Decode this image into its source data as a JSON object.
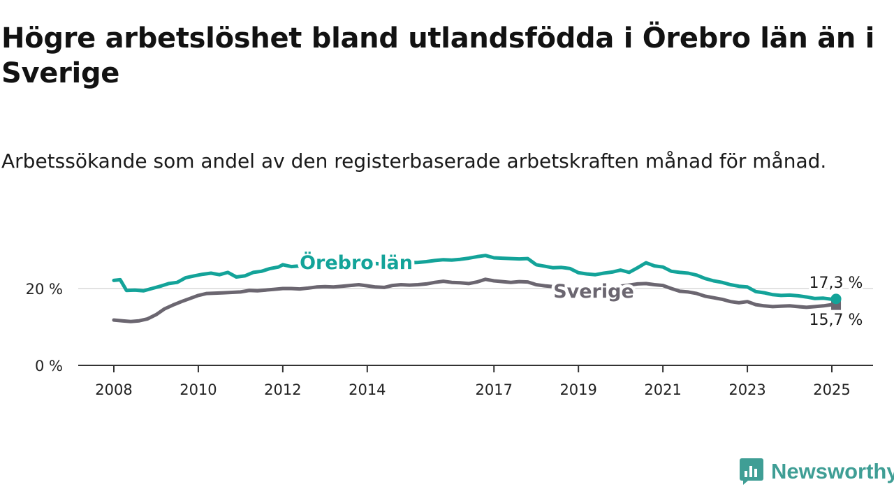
{
  "header": {
    "title": "Högre arbetslöshet bland utlandsfödda i Örebro län än i Sverige",
    "subtitle": "Arbetssökande som andel av den registerbaserade arbetskraften månad för månad."
  },
  "brand": {
    "name": "Newsworthy",
    "icon": "newsworthy-logo-icon",
    "color": "#3f9e95"
  },
  "chart_data": {
    "type": "line",
    "title": "Högre arbetslöshet bland utlandsfödda i Örebro län än i Sverige",
    "subtitle": "Arbetssökande som andel av den registerbaserade arbetskraften månad för månad.",
    "xlabel": "",
    "ylabel": "",
    "xlim": [
      2008.0,
      2025.9
    ],
    "ylim": [
      0,
      30
    ],
    "yticks": [
      0,
      20
    ],
    "ytick_labels": [
      "0 %",
      "20 %"
    ],
    "xticks": [
      2008,
      2010,
      2012,
      2014,
      2017,
      2019,
      2021,
      2023,
      2025
    ],
    "xtick_labels": [
      "2008",
      "2010",
      "2012",
      "2014",
      "2017",
      "2019",
      "2021",
      "2023",
      "2025"
    ],
    "grid": "horizontal",
    "series": [
      {
        "name": "Örebro län",
        "color": "#13a399",
        "end_label": "17,3 %",
        "points": [
          [
            2008.0,
            22.1
          ],
          [
            2008.15,
            22.3
          ],
          [
            2008.3,
            19.5
          ],
          [
            2008.5,
            19.6
          ],
          [
            2008.7,
            19.4
          ],
          [
            2008.9,
            20.0
          ],
          [
            2009.1,
            20.6
          ],
          [
            2009.3,
            21.3
          ],
          [
            2009.5,
            21.6
          ],
          [
            2009.7,
            22.8
          ],
          [
            2009.9,
            23.3
          ],
          [
            2010.1,
            23.7
          ],
          [
            2010.3,
            24.0
          ],
          [
            2010.5,
            23.6
          ],
          [
            2010.7,
            24.2
          ],
          [
            2010.9,
            23.0
          ],
          [
            2011.1,
            23.3
          ],
          [
            2011.3,
            24.2
          ],
          [
            2011.5,
            24.5
          ],
          [
            2011.7,
            25.2
          ],
          [
            2011.9,
            25.6
          ],
          [
            2012.0,
            26.2
          ],
          [
            2012.2,
            25.7
          ],
          [
            2012.4,
            25.9
          ],
          [
            2012.6,
            26.1
          ],
          [
            2012.8,
            26.0
          ],
          [
            2013.0,
            26.2
          ],
          [
            2013.2,
            26.0
          ],
          [
            2013.4,
            26.3
          ],
          [
            2013.6,
            26.1
          ],
          [
            2013.8,
            26.4
          ],
          [
            2014.0,
            26.2
          ],
          [
            2014.2,
            26.5
          ],
          [
            2014.4,
            26.3
          ],
          [
            2014.6,
            26.6
          ],
          [
            2014.8,
            26.5
          ],
          [
            2015.0,
            26.7
          ],
          [
            2015.2,
            26.8
          ],
          [
            2015.4,
            27.0
          ],
          [
            2015.6,
            27.3
          ],
          [
            2015.8,
            27.5
          ],
          [
            2016.0,
            27.4
          ],
          [
            2016.2,
            27.6
          ],
          [
            2016.4,
            27.9
          ],
          [
            2016.6,
            28.3
          ],
          [
            2016.8,
            28.6
          ],
          [
            2017.0,
            28.0
          ],
          [
            2017.2,
            27.9
          ],
          [
            2017.4,
            27.8
          ],
          [
            2017.6,
            27.7
          ],
          [
            2017.8,
            27.8
          ],
          [
            2018.0,
            26.2
          ],
          [
            2018.2,
            25.8
          ],
          [
            2018.4,
            25.4
          ],
          [
            2018.6,
            25.5
          ],
          [
            2018.8,
            25.2
          ],
          [
            2019.0,
            24.1
          ],
          [
            2019.2,
            23.8
          ],
          [
            2019.4,
            23.6
          ],
          [
            2019.6,
            24.0
          ],
          [
            2019.8,
            24.3
          ],
          [
            2020.0,
            24.8
          ],
          [
            2020.2,
            24.2
          ],
          [
            2020.4,
            25.4
          ],
          [
            2020.6,
            26.7
          ],
          [
            2020.8,
            25.9
          ],
          [
            2021.0,
            25.6
          ],
          [
            2021.2,
            24.5
          ],
          [
            2021.4,
            24.2
          ],
          [
            2021.6,
            24.0
          ],
          [
            2021.8,
            23.5
          ],
          [
            2022.0,
            22.6
          ],
          [
            2022.2,
            22.0
          ],
          [
            2022.4,
            21.6
          ],
          [
            2022.6,
            21.0
          ],
          [
            2022.8,
            20.6
          ],
          [
            2023.0,
            20.4
          ],
          [
            2023.2,
            19.2
          ],
          [
            2023.4,
            18.9
          ],
          [
            2023.6,
            18.4
          ],
          [
            2023.8,
            18.2
          ],
          [
            2024.0,
            18.3
          ],
          [
            2024.2,
            18.1
          ],
          [
            2024.4,
            17.8
          ],
          [
            2024.6,
            17.4
          ],
          [
            2024.8,
            17.5
          ],
          [
            2025.0,
            17.2
          ],
          [
            2025.1,
            17.3
          ]
        ]
      },
      {
        "name": "Sverige",
        "color": "#6b6670",
        "end_label": "15,7 %",
        "points": [
          [
            2008.0,
            11.8
          ],
          [
            2008.2,
            11.6
          ],
          [
            2008.4,
            11.4
          ],
          [
            2008.6,
            11.6
          ],
          [
            2008.8,
            12.1
          ],
          [
            2009.0,
            13.2
          ],
          [
            2009.2,
            14.7
          ],
          [
            2009.4,
            15.7
          ],
          [
            2009.6,
            16.6
          ],
          [
            2009.8,
            17.4
          ],
          [
            2010.0,
            18.2
          ],
          [
            2010.2,
            18.7
          ],
          [
            2010.4,
            18.8
          ],
          [
            2010.6,
            18.9
          ],
          [
            2010.8,
            19.0
          ],
          [
            2011.0,
            19.1
          ],
          [
            2011.2,
            19.5
          ],
          [
            2011.4,
            19.4
          ],
          [
            2011.6,
            19.6
          ],
          [
            2011.8,
            19.8
          ],
          [
            2012.0,
            20.0
          ],
          [
            2012.2,
            20.0
          ],
          [
            2012.4,
            19.9
          ],
          [
            2012.6,
            20.1
          ],
          [
            2012.8,
            20.4
          ],
          [
            2013.0,
            20.5
          ],
          [
            2013.2,
            20.4
          ],
          [
            2013.4,
            20.6
          ],
          [
            2013.6,
            20.8
          ],
          [
            2013.8,
            21.0
          ],
          [
            2014.0,
            20.7
          ],
          [
            2014.2,
            20.4
          ],
          [
            2014.4,
            20.3
          ],
          [
            2014.6,
            20.8
          ],
          [
            2014.8,
            21.0
          ],
          [
            2015.0,
            20.9
          ],
          [
            2015.2,
            21.0
          ],
          [
            2015.4,
            21.2
          ],
          [
            2015.6,
            21.6
          ],
          [
            2015.8,
            21.9
          ],
          [
            2016.0,
            21.6
          ],
          [
            2016.2,
            21.5
          ],
          [
            2016.4,
            21.3
          ],
          [
            2016.6,
            21.7
          ],
          [
            2016.8,
            22.4
          ],
          [
            2017.0,
            22.0
          ],
          [
            2017.2,
            21.8
          ],
          [
            2017.4,
            21.6
          ],
          [
            2017.6,
            21.8
          ],
          [
            2017.8,
            21.7
          ],
          [
            2018.0,
            21.0
          ],
          [
            2018.2,
            20.7
          ],
          [
            2018.4,
            20.5
          ],
          [
            2018.6,
            20.4
          ],
          [
            2018.8,
            20.2
          ],
          [
            2019.0,
            20.0
          ],
          [
            2019.2,
            20.1
          ],
          [
            2019.4,
            20.3
          ],
          [
            2019.6,
            20.4
          ],
          [
            2019.8,
            20.5
          ],
          [
            2020.0,
            20.6
          ],
          [
            2020.2,
            20.9
          ],
          [
            2020.4,
            21.2
          ],
          [
            2020.6,
            21.3
          ],
          [
            2020.8,
            21.0
          ],
          [
            2021.0,
            20.8
          ],
          [
            2021.2,
            20.0
          ],
          [
            2021.4,
            19.3
          ],
          [
            2021.6,
            19.1
          ],
          [
            2021.8,
            18.7
          ],
          [
            2022.0,
            18.0
          ],
          [
            2022.2,
            17.6
          ],
          [
            2022.4,
            17.2
          ],
          [
            2022.6,
            16.6
          ],
          [
            2022.8,
            16.3
          ],
          [
            2023.0,
            16.6
          ],
          [
            2023.2,
            15.8
          ],
          [
            2023.4,
            15.5
          ],
          [
            2023.6,
            15.3
          ],
          [
            2023.8,
            15.4
          ],
          [
            2024.0,
            15.5
          ],
          [
            2024.2,
            15.3
          ],
          [
            2024.4,
            15.1
          ],
          [
            2024.6,
            15.3
          ],
          [
            2024.8,
            15.5
          ],
          [
            2025.0,
            15.8
          ],
          [
            2025.1,
            15.7
          ]
        ]
      }
    ]
  }
}
